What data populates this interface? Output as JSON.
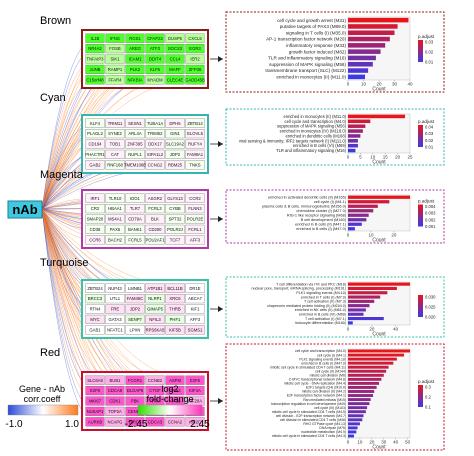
{
  "hub_label": "nAb",
  "modules": [
    {
      "name": "Brown",
      "color": "#8b1a1a",
      "genes": [
        [
          "IL1B",
          "IFNG",
          "RGS1",
          "CFAP22",
          "DUSP5",
          "CXCL5"
        ],
        [
          "NR4A2",
          "FOSB",
          "AREG",
          "ATF3",
          "SOCS3",
          "EGR3"
        ],
        [
          "TNFAIP3",
          "SIK1",
          "ICAM1",
          "DDIT4",
          "CCL4",
          "IER2"
        ],
        [
          "JUNB",
          "RAMP1",
          "PLK2",
          "KLF6",
          "MAFF",
          "ZFP36"
        ],
        [
          "C15orf48",
          "FFAR4",
          "NFKBIA",
          "MYADM",
          "CLEC4E",
          "GADD45B"
        ]
      ]
    },
    {
      "name": "Cyan",
      "color": "#35b5b0",
      "genes": [
        [
          "KLF4",
          "TRIM11",
          "SESN1",
          "TUBA1A",
          "DPH5",
          "ZBTB14"
        ],
        [
          "PLAGL2",
          "SYNE2",
          "ARL4A",
          "TRIM52",
          "GIN1",
          "ELOVL5"
        ],
        [
          "CD164",
          "TOB1",
          "ZNF395",
          "DDX17",
          "SLC19A2",
          "RUFY4"
        ],
        [
          "PHACTR1",
          "CAT",
          "NUPL1",
          "SIPA1L2",
          "JDP2",
          "FAM8A1"
        ],
        [
          "GAB2",
          "RNF168",
          "TMEM106B",
          "CCNG2",
          "RBM25",
          "TNKS"
        ]
      ]
    },
    {
      "name": "Magenta",
      "color": "#b03aa8",
      "genes": [
        [
          "IRF1",
          "TLR10",
          "IDO1",
          "ASGR2",
          "GLYS13",
          "CCR2"
        ],
        [
          "CR2",
          "HBAA1",
          "TLR7",
          "FCRL3",
          "CYBB",
          "FLNN3"
        ],
        [
          "SMAP20",
          "MS4A1",
          "CD79A",
          "BLK",
          "SPT32",
          "POLR2E"
        ],
        [
          "CD38",
          "PAX5",
          "BANK1",
          "CD200",
          "POLR2J",
          "FCRL1"
        ],
        [
          "CCR6",
          "BACH2",
          "FCRL5",
          "POU2AF1",
          "TCF7",
          "AFF3"
        ]
      ]
    },
    {
      "name": "Turquoise",
      "color": "#3ac2a8",
      "genes": [
        [
          "ZBTB24",
          "NUP43",
          "LMNB1",
          "ATP1B1",
          "BCL11B",
          "DR1E"
        ],
        [
          "BRCC3",
          "UTL1",
          "FAM46C",
          "NLRP1",
          "XRC6",
          "ABCA7"
        ],
        [
          "RTN4",
          "FRE",
          "JDP2",
          "GIMAP5",
          "THRB",
          "KIF1"
        ],
        [
          "MYC",
          "GATA3",
          "SENP7",
          "NFIL3",
          "PHF1",
          "AFF3"
        ],
        [
          "GAB1",
          "NFATC1",
          "LPXN",
          "RPS6KA5",
          "KIF5B",
          "SGMS1"
        ]
      ]
    },
    {
      "name": "Red",
      "color": "#c8102e",
      "genes": [
        [
          "SLC6A8",
          "BUB1",
          "FCGR1",
          "CCNB2",
          "ASPM",
          "E2F6"
        ],
        [
          "E2F8",
          "CDCA8",
          "DLGAP5",
          "CTGF",
          "DNA2",
          "KIF4A"
        ],
        [
          "MKI67",
          "CDK1",
          "PBK",
          "TTK",
          "KIF15",
          "KIF20A"
        ],
        [
          "NUSAP1",
          "TOP2A",
          "CENPF",
          "KIF11",
          "CDC20",
          "KIF18B"
        ],
        [
          "AURKB",
          "NCAPG",
          "BIRC5",
          "CDCA3",
          "CCNA2",
          "KIF2C"
        ]
      ]
    }
  ],
  "enrichment": [
    {
      "terms": [
        "cell cycle and growth arrest (M31)",
        "putative targets of PAX3 (M89.0)",
        "signaling in T cells (I) (M35.0)",
        "AP-1 transcription factor network (M20)",
        "inflammatory response (M33)",
        "growth factor induced (M62)",
        "TLR and inflammatory signaling (M16)",
        "suppression of MAPK signaling (M56)",
        "transmembrane transport (SLC) (M122)",
        "enriched in monocytes (II) (M11.0)"
      ],
      "values": [
        39,
        32,
        30,
        27,
        24,
        21,
        18,
        16,
        13,
        11
      ],
      "axis_ticks": [
        "0",
        "10",
        "20",
        "30",
        "40"
      ],
      "legend_values": [
        "0.03",
        "0.02",
        "0.01"
      ],
      "legend_title": "p.adjust",
      "xlabel": "Count"
    },
    {
      "terms": [
        "enriched in monocytes (II) (M11.0)",
        "cell cycle and transcription (M4.0)",
        "suppression of MAPK signaling (M56)",
        "enriched in monocytes (IV) (M118.0)",
        "enriched in dendritic cells (M168)",
        "viral sensing & immunity; IRF2 targets network (I) (M111.0)",
        "enriched in B cells (VI) (M69)",
        "TLR and inflammatory signaling (M16)"
      ],
      "values": [
        23,
        9,
        7,
        6,
        5,
        4,
        4,
        3
      ],
      "axis_ticks": [
        "0",
        "5",
        "10",
        "15",
        "20",
        "25"
      ],
      "legend_values": [
        "0.04",
        "0.03",
        "0.02",
        "0.01"
      ],
      "legend_title": "p.adjust",
      "xlabel": "Count"
    },
    {
      "terms": [
        "enriched in activated dendritic cells (II) (M165)",
        "cell cycle (I) (M4.1)",
        "plasma cells & B cells, immunoglobulins (M156.0)",
        "chemokine cluster (I) (M27.0)",
        "RIG-1 like receptor signaling (M68)",
        "B cell development (M160)",
        "enriched in B cells (II) (M47.1)",
        "enriched in B cells (I) (M47.0)"
      ],
      "values": [
        27,
        18,
        13,
        11,
        9,
        8,
        6,
        3
      ],
      "axis_ticks": [
        "0",
        "10",
        "20"
      ],
      "legend_values": [
        "0.004",
        "0.003",
        "0.002",
        "0.001"
      ],
      "legend_title": "p.adjust",
      "xlabel": "Count"
    },
    {
      "terms": [
        "T cell differentiation via ITK and PKC (M18)",
        "nuclear pore, transport; mRNA splicing, processing (M191)",
        "PLK1 signaling events (M4.10)",
        "enriched in T cells (I) (M7.0)",
        "T cell activation (II) (M7.3)",
        "chaperonin mediated protein folding (II) (M204.0)",
        "enriched in NK cells (II) (M61.0)",
        "enriched in B cells (VI) (M69)",
        "T cell activation (I) (M7.1)",
        "leukocyte differentiation (M160)"
      ],
      "values": [
        52,
        41,
        33,
        27,
        22,
        18,
        15,
        13,
        30,
        4
      ],
      "axis_ticks": [
        "0",
        "20",
        "40"
      ],
      "legend_values": [
        "0.030",
        "0.025",
        "0.020"
      ],
      "legend_title": "",
      "xlabel": "Count"
    },
    {
      "terms": [
        "cell cycle and transcription (M4.0)",
        "cell cycle (I) (M4.1)",
        "PLK1 signaling events (M4.10)",
        "enriched in B cells (I) (M47.0)",
        "mitotic cell cycle in stimulated CD4 T cells (M4.11)",
        "cell cycle (II) (M144)",
        "mitotic cell division (M6)",
        "C-MYC transcriptional network (M4.6)",
        "mitotic cell cycle - DNA replication (M4.4)",
        "E2F1 targets (Q4) (M10.0)",
        "mitotic cell division (II) (M4.2)",
        "E2F transcription factor network (M4.1)",
        "Ran mediated mitosis (M15)",
        "transcription regulation in cell development (M49)",
        "cell cycle (III) (M103)",
        "mitotic cell cycle in stimulated CD4 T cells (M4.5)",
        "cell division - E2F transcription network (M4.7)",
        "cell division in stimulated CD4 T cells (M46)",
        "RHO GTPase cycle (M4.13)",
        "DNA repair (M76)",
        "nucleotide metabolism (M4.9)",
        "mitotic cell cycle in stimulated CD4 T cells (M4.3)"
      ],
      "values": [
        52,
        47,
        41,
        38,
        34,
        32,
        30,
        28,
        26,
        24,
        22,
        21,
        19,
        18,
        16,
        15,
        13,
        12,
        10,
        8,
        7,
        5
      ],
      "axis_ticks": [
        "0",
        "10",
        "20",
        "30",
        "40",
        "50"
      ],
      "legend_values": [
        "0.3",
        "0.2",
        "0.1"
      ],
      "legend_title": "p.adjust",
      "xlabel": "Count"
    }
  ],
  "legend_corr": {
    "title_line1": "Gene - nAb",
    "title_line2": "corr.coeff",
    "min": "-1.0",
    "max": "1.0"
  },
  "legend_fc": {
    "title_line1": "log2",
    "title_line2": "fold-change",
    "min": "-2.45",
    "max": "2.45"
  },
  "colors": {
    "hub_fill": "#40c8e0",
    "bar_red": "#e8161b",
    "bar_blue": "#3a3ae8",
    "fc_green": "#2fe000",
    "fc_pink": "#ff66cc",
    "corr_blue": "#2b4bd8",
    "corr_orange": "#ff7a1a"
  }
}
